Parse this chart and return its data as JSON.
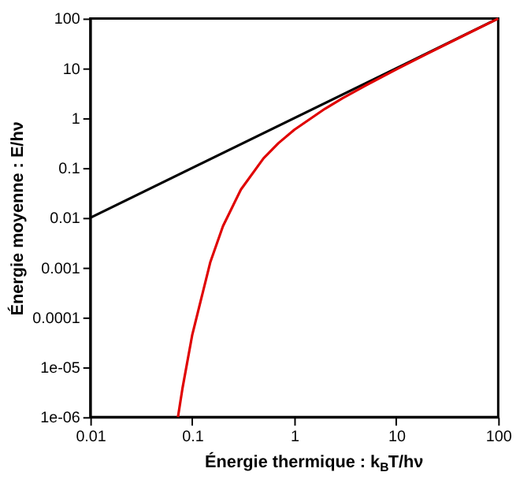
{
  "chart_data": {
    "type": "line",
    "xlabel": "Énergie thermique : k$_{B}$T/hν",
    "ylabel": "Énergie moyenne : E/hν",
    "log": "xy",
    "marker": "none",
    "line_style": "solid",
    "xlim": [
      0.01,
      100
    ],
    "ylim": [
      1e-06,
      100
    ],
    "xticks": [
      0.01,
      0.1,
      1,
      10,
      100
    ],
    "yticks": [
      {
        "value": 1e-06,
        "label": "1e-06"
      },
      {
        "value": 1e-05,
        "label": "1e-05"
      },
      0.0001,
      0.001,
      0.01,
      0.1,
      1,
      10,
      100
    ],
    "series": [
      {
        "color": "#000000",
        "x": [
          0.01,
          100
        ],
        "values": [
          0.01,
          100
        ]
      },
      {
        "color": "#e00000",
        "x": [
          0.0724,
          0.08,
          0.1,
          0.15,
          0.2,
          0.3,
          0.5,
          0.7,
          1,
          2,
          3,
          5,
          10,
          20,
          50,
          100
        ],
        "values": [
          1e-06,
          3.7e-06,
          4.5e-05,
          0.00127,
          0.0068,
          0.037,
          0.156,
          0.315,
          0.582,
          1.541,
          2.528,
          4.517,
          9.508,
          19.5,
          49.5,
          99.5
        ]
      }
    ]
  }
}
